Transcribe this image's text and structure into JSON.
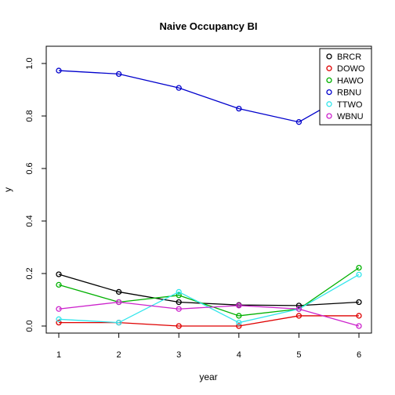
{
  "chart_data": {
    "type": "line",
    "title": "Naive Occupancy BI",
    "xlabel": "year",
    "ylabel": "y",
    "x": [
      1,
      2,
      3,
      4,
      5,
      6
    ],
    "xlim": [
      1,
      6
    ],
    "ylim": [
      0,
      1
    ],
    "xticks": [
      "1",
      "2",
      "3",
      "4",
      "5",
      "6"
    ],
    "yticks": [
      "0.0",
      "0.2",
      "0.4",
      "0.6",
      "0.8",
      "1.0"
    ],
    "grid": false,
    "legend_position": "top-right",
    "series": [
      {
        "name": "BRCR",
        "color": "#000000",
        "values": [
          0.197,
          0.13,
          0.091,
          0.08,
          0.078,
          0.091
        ]
      },
      {
        "name": "DOWO",
        "color": "#df0000",
        "values": [
          0.013,
          0.013,
          0.0,
          0.0,
          0.039,
          0.039
        ]
      },
      {
        "name": "HAWO",
        "color": "#00b000",
        "values": [
          0.157,
          0.091,
          0.117,
          0.039,
          0.065,
          0.222
        ]
      },
      {
        "name": "RBNU",
        "color": "#0000cc",
        "values": [
          0.973,
          0.96,
          0.907,
          0.828,
          0.777,
          0.907
        ]
      },
      {
        "name": "TTWO",
        "color": "#33e5ec",
        "values": [
          0.026,
          0.013,
          0.13,
          0.013,
          0.065,
          0.196
        ]
      },
      {
        "name": "WBNU",
        "color": "#cc22cc",
        "values": [
          0.065,
          0.091,
          0.065,
          0.078,
          0.065,
          0.0
        ]
      }
    ]
  }
}
